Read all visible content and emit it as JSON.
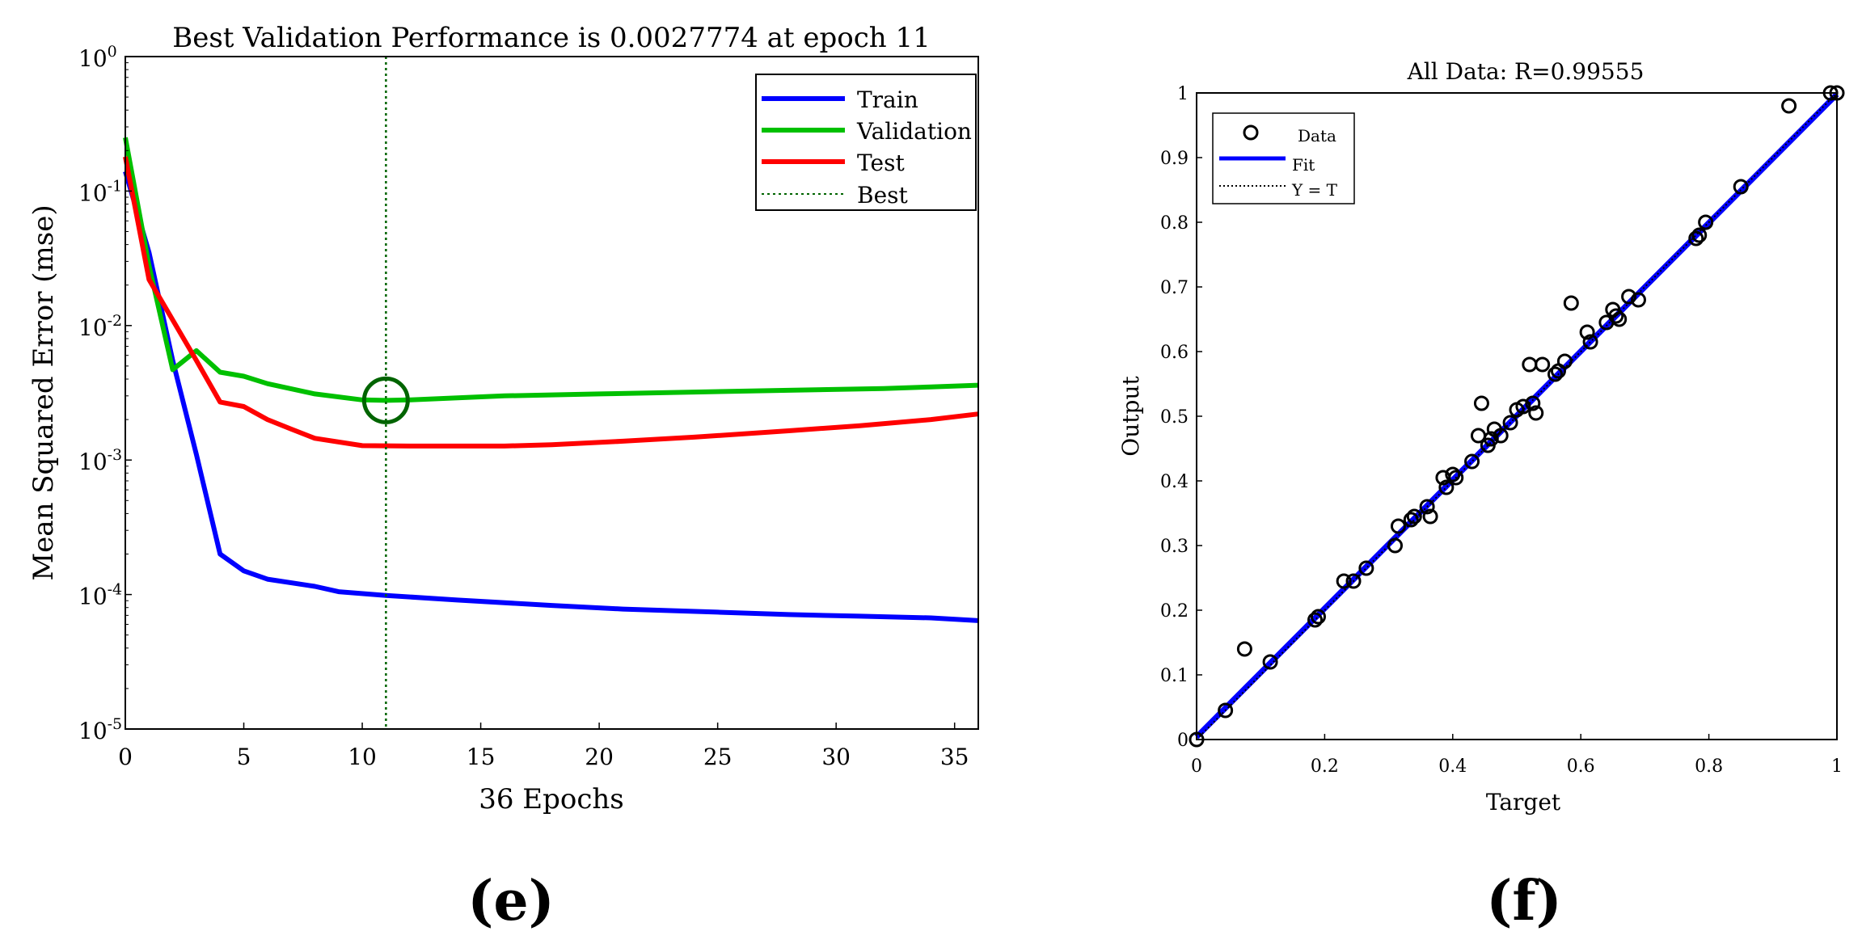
{
  "chart_data": [
    {
      "type": "line",
      "panel": "(e)",
      "title": "Best Validation Performance is 0.0027774 at epoch 11",
      "xlabel": "36 Epochs",
      "ylabel": "Mean Squared Error  (mse)",
      "xlim": [
        0,
        36
      ],
      "ylim": [
        1e-05,
        1
      ],
      "yscale": "log",
      "x_ticks": [
        0,
        5,
        10,
        15,
        20,
        25,
        30,
        35
      ],
      "y_ticks": [
        {
          "value": 1,
          "base": "10",
          "exp": "0"
        },
        {
          "value": 0.1,
          "base": "10",
          "exp": "-1"
        },
        {
          "value": 0.01,
          "base": "10",
          "exp": "-2"
        },
        {
          "value": 0.001,
          "base": "10",
          "exp": "-3"
        },
        {
          "value": 0.0001,
          "base": "10",
          "exp": "-4"
        },
        {
          "value": 1e-05,
          "base": "10",
          "exp": "-5"
        }
      ],
      "legend_position": "top-right",
      "series": [
        {
          "name": "Train",
          "color": "#0000ff",
          "x": [
            0,
            1,
            2,
            3,
            4,
            5,
            6,
            8,
            9,
            11,
            14,
            18,
            21,
            25,
            28,
            31,
            34,
            36
          ],
          "values": [
            0.14,
            0.035,
            0.0055,
            0.0011,
            0.0002,
            0.00015,
            0.00013,
            0.000115,
            0.000105,
            9.85e-05,
            9.1e-05,
            8.3e-05,
            7.8e-05,
            7.4e-05,
            7.1e-05,
            6.9e-05,
            6.7e-05,
            6.4e-05
          ]
        },
        {
          "name": "Validation",
          "color": "#00c000",
          "x": [
            0,
            1,
            2,
            3,
            4,
            5,
            6,
            8,
            10,
            11,
            12,
            16,
            20,
            24,
            28,
            32,
            34,
            36
          ],
          "values": [
            0.25,
            0.028,
            0.0047,
            0.0065,
            0.0045,
            0.0042,
            0.0037,
            0.0031,
            0.0028,
            0.0027774,
            0.0028,
            0.003,
            0.0031,
            0.0032,
            0.0033,
            0.0034,
            0.0035,
            0.0036
          ]
        },
        {
          "name": "Test",
          "color": "#ff0000",
          "x": [
            0,
            1,
            2,
            3,
            4,
            5,
            6,
            7,
            8,
            10,
            12,
            16,
            18,
            21,
            24,
            28,
            31,
            34,
            36
          ],
          "values": [
            0.18,
            0.022,
            0.011,
            0.0055,
            0.0027,
            0.0025,
            0.002,
            0.0017,
            0.00145,
            0.00128,
            0.00127,
            0.00127,
            0.0013,
            0.00138,
            0.00148,
            0.00165,
            0.0018,
            0.002,
            0.0022
          ]
        }
      ],
      "best": {
        "name": "Best",
        "epoch": 11,
        "value": 0.0027774,
        "color": "#006400"
      }
    },
    {
      "type": "scatter",
      "panel": "(f)",
      "title": "All Data: R=0.99555",
      "xlabel": "Target",
      "ylabel": "Output",
      "xlim": [
        0,
        1
      ],
      "ylim": [
        0,
        1
      ],
      "x_ticks": [
        "0",
        "0.2",
        "0.4",
        "0.6",
        "0.8",
        "1"
      ],
      "y_ticks": [
        "0",
        "0.1",
        "0.2",
        "0.3",
        "0.4",
        "0.5",
        "0.6",
        "0.7",
        "0.8",
        "0.9",
        "1"
      ],
      "legend_position": "top-left",
      "legend": [
        "Data",
        "Fit",
        "Y = T"
      ],
      "fit": {
        "slope": 0.994,
        "intercept": 0.004,
        "color": "#0000ff"
      },
      "identity_line": {
        "color": "#000000"
      },
      "points": [
        [
          0.0,
          0.0
        ],
        [
          0.045,
          0.045
        ],
        [
          0.075,
          0.14
        ],
        [
          0.115,
          0.12
        ],
        [
          0.185,
          0.185
        ],
        [
          0.19,
          0.19
        ],
        [
          0.23,
          0.245
        ],
        [
          0.245,
          0.245
        ],
        [
          0.265,
          0.265
        ],
        [
          0.31,
          0.3
        ],
        [
          0.315,
          0.33
        ],
        [
          0.335,
          0.34
        ],
        [
          0.34,
          0.345
        ],
        [
          0.36,
          0.36
        ],
        [
          0.365,
          0.345
        ],
        [
          0.385,
          0.405
        ],
        [
          0.39,
          0.39
        ],
        [
          0.4,
          0.41
        ],
        [
          0.405,
          0.405
        ],
        [
          0.43,
          0.43
        ],
        [
          0.44,
          0.47
        ],
        [
          0.445,
          0.52
        ],
        [
          0.455,
          0.455
        ],
        [
          0.46,
          0.465
        ],
        [
          0.465,
          0.48
        ],
        [
          0.475,
          0.47
        ],
        [
          0.49,
          0.49
        ],
        [
          0.5,
          0.51
        ],
        [
          0.51,
          0.515
        ],
        [
          0.52,
          0.58
        ],
        [
          0.525,
          0.52
        ],
        [
          0.53,
          0.505
        ],
        [
          0.54,
          0.58
        ],
        [
          0.56,
          0.565
        ],
        [
          0.565,
          0.57
        ],
        [
          0.575,
          0.585
        ],
        [
          0.585,
          0.675
        ],
        [
          0.61,
          0.63
        ],
        [
          0.615,
          0.615
        ],
        [
          0.64,
          0.645
        ],
        [
          0.65,
          0.665
        ],
        [
          0.655,
          0.655
        ],
        [
          0.66,
          0.65
        ],
        [
          0.675,
          0.685
        ],
        [
          0.69,
          0.68
        ],
        [
          0.78,
          0.775
        ],
        [
          0.785,
          0.78
        ],
        [
          0.795,
          0.8
        ],
        [
          0.85,
          0.855
        ],
        [
          0.925,
          0.98
        ],
        [
          0.99,
          1.0
        ],
        [
          1.0,
          1.0
        ]
      ]
    }
  ],
  "panel_labels": {
    "e": "(e)",
    "f": "(f)"
  }
}
